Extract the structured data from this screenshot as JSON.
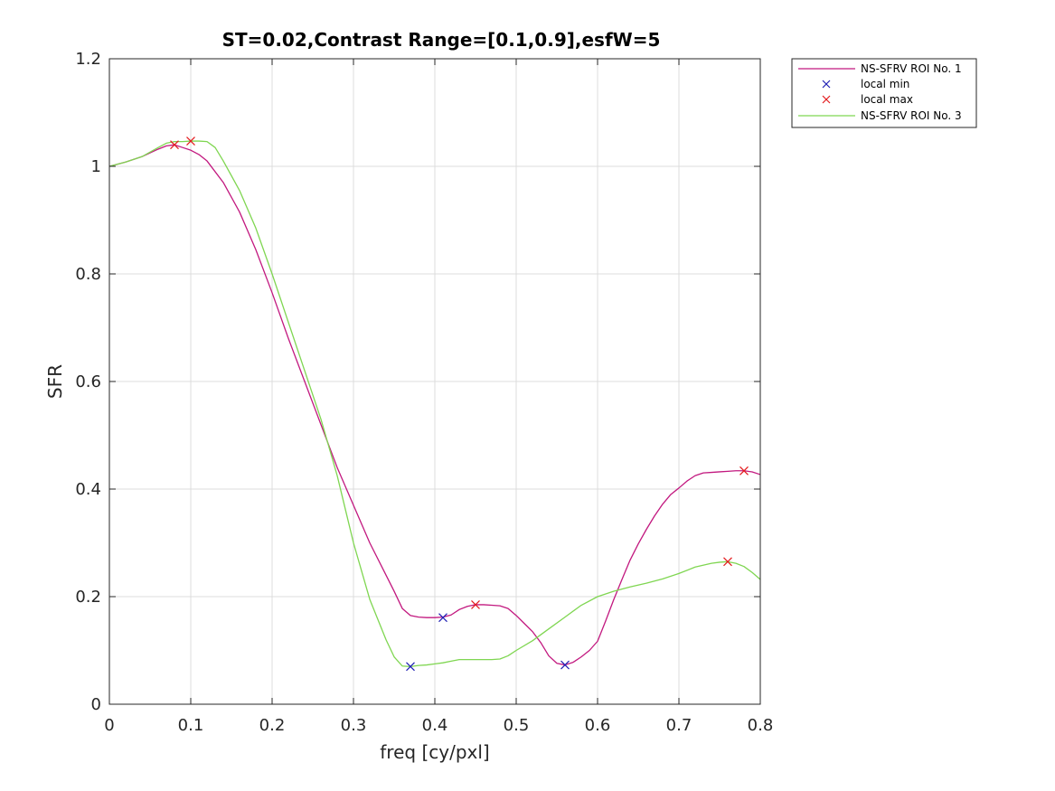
{
  "colors": {
    "series1": "#c2187f",
    "series2": "#7fd651",
    "local_min": "#1f1fb4",
    "local_max": "#e31a1c",
    "grid": "#dcdcdc",
    "axis": "#262626"
  },
  "chart_data": {
    "type": "line",
    "title": "ST=0.02,Contrast Range=[0.1,0.9],esfW=5",
    "xlabel": "freq [cy/pxl]",
    "ylabel": "SFR",
    "xlim": [
      0,
      0.8
    ],
    "ylim": [
      0,
      1.2
    ],
    "xticks": [
      0,
      0.1,
      0.2,
      0.3,
      0.4,
      0.5,
      0.6,
      0.7,
      0.8
    ],
    "yticks": [
      0,
      0.2,
      0.4,
      0.6,
      0.8,
      1,
      1.2
    ],
    "xtick_labels": [
      "0",
      "0.1",
      "0.2",
      "0.3",
      "0.4",
      "0.5",
      "0.6",
      "0.7",
      "0.8"
    ],
    "ytick_labels": [
      "0",
      "0.2",
      "0.4",
      "0.6",
      "0.8",
      "1",
      "1.2"
    ],
    "grid": true,
    "legend_position": "outside-top-right",
    "legend": [
      "NS-SFRV ROI No. 1",
      "local min",
      "local max",
      "NS-SFRV ROI No. 3"
    ],
    "series": [
      {
        "name": "NS-SFRV ROI No. 1",
        "x": [
          0,
          0.02,
          0.04,
          0.06,
          0.07,
          0.08,
          0.09,
          0.1,
          0.11,
          0.12,
          0.14,
          0.16,
          0.18,
          0.2,
          0.22,
          0.24,
          0.26,
          0.28,
          0.3,
          0.32,
          0.34,
          0.35,
          0.36,
          0.37,
          0.38,
          0.39,
          0.4,
          0.41,
          0.42,
          0.43,
          0.44,
          0.45,
          0.46,
          0.47,
          0.48,
          0.49,
          0.5,
          0.51,
          0.52,
          0.53,
          0.54,
          0.55,
          0.56,
          0.57,
          0.58,
          0.59,
          0.6,
          0.61,
          0.62,
          0.63,
          0.64,
          0.65,
          0.66,
          0.67,
          0.68,
          0.69,
          0.7,
          0.71,
          0.72,
          0.73,
          0.74,
          0.75,
          0.76,
          0.77,
          0.78,
          0.79,
          0.8
        ],
        "y": [
          1.0,
          1.008,
          1.018,
          1.032,
          1.038,
          1.04,
          1.035,
          1.03,
          1.022,
          1.01,
          0.97,
          0.915,
          0.845,
          0.765,
          0.68,
          0.6,
          0.52,
          0.44,
          0.37,
          0.3,
          0.24,
          0.21,
          0.178,
          0.165,
          0.162,
          0.161,
          0.161,
          0.162,
          0.166,
          0.176,
          0.182,
          0.185,
          0.185,
          0.184,
          0.183,
          0.178,
          0.165,
          0.15,
          0.135,
          0.115,
          0.09,
          0.076,
          0.073,
          0.078,
          0.088,
          0.1,
          0.117,
          0.155,
          0.195,
          0.232,
          0.268,
          0.298,
          0.325,
          0.35,
          0.372,
          0.39,
          0.402,
          0.415,
          0.425,
          0.43,
          0.431,
          0.432,
          0.433,
          0.434,
          0.434,
          0.432,
          0.427
        ]
      },
      {
        "name": "NS-SFRV ROI No. 3",
        "x": [
          0,
          0.02,
          0.04,
          0.06,
          0.07,
          0.08,
          0.09,
          0.1,
          0.11,
          0.12,
          0.13,
          0.14,
          0.16,
          0.18,
          0.2,
          0.22,
          0.24,
          0.26,
          0.28,
          0.3,
          0.32,
          0.34,
          0.35,
          0.36,
          0.37,
          0.38,
          0.39,
          0.4,
          0.41,
          0.42,
          0.43,
          0.44,
          0.45,
          0.46,
          0.47,
          0.48,
          0.49,
          0.5,
          0.52,
          0.54,
          0.56,
          0.58,
          0.6,
          0.62,
          0.64,
          0.66,
          0.68,
          0.7,
          0.72,
          0.74,
          0.75,
          0.76,
          0.77,
          0.78,
          0.79,
          0.8
        ],
        "y": [
          1.0,
          1.008,
          1.018,
          1.035,
          1.043,
          1.046,
          1.046,
          1.047,
          1.047,
          1.046,
          1.035,
          1.01,
          0.955,
          0.885,
          0.8,
          0.71,
          0.62,
          0.53,
          0.425,
          0.3,
          0.195,
          0.12,
          0.088,
          0.071,
          0.07,
          0.072,
          0.073,
          0.075,
          0.077,
          0.08,
          0.083,
          0.083,
          0.083,
          0.083,
          0.083,
          0.084,
          0.09,
          0.1,
          0.118,
          0.14,
          0.162,
          0.184,
          0.2,
          0.21,
          0.218,
          0.225,
          0.233,
          0.243,
          0.255,
          0.262,
          0.264,
          0.265,
          0.262,
          0.256,
          0.245,
          0.232
        ]
      }
    ],
    "local_min": {
      "name": "local min",
      "x": [
        0.37,
        0.41,
        0.56
      ],
      "y": [
        0.07,
        0.161,
        0.073
      ]
    },
    "local_max": {
      "name": "local max",
      "x": [
        0.08,
        0.1,
        0.45,
        0.76,
        0.78
      ],
      "y": [
        1.04,
        1.047,
        0.185,
        0.265,
        0.434
      ]
    }
  }
}
